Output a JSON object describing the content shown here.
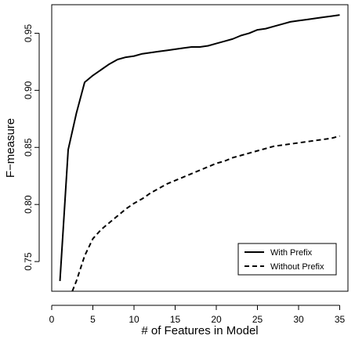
{
  "chart_data": {
    "type": "line",
    "title": "",
    "xlabel": "# of Features in Model",
    "ylabel": "F−measure",
    "xlim": [
      0,
      36
    ],
    "ylim": [
      0.724,
      0.975
    ],
    "xticks": [
      0,
      5,
      10,
      15,
      20,
      25,
      30,
      35
    ],
    "xtick_labels": [
      "0",
      "5",
      "10",
      "15",
      "20",
      "25",
      "30",
      "35"
    ],
    "yticks": [
      0.75,
      0.8,
      0.85,
      0.9,
      0.95
    ],
    "ytick_labels": [
      "0.75",
      "0.80",
      "0.85",
      "0.90",
      "0.95"
    ],
    "grid": false,
    "legend_position": "bottom-right",
    "series": [
      {
        "name": "With Prefix",
        "line_style": "solid",
        "color": "#000000",
        "x": [
          1,
          2,
          3,
          4,
          5,
          6,
          7,
          8,
          9,
          10,
          11,
          12,
          13,
          14,
          15,
          16,
          17,
          18,
          19,
          20,
          21,
          22,
          23,
          24,
          25,
          26,
          27,
          28,
          29,
          30,
          31,
          32,
          33,
          34,
          35
        ],
        "y": [
          0.733,
          0.848,
          0.88,
          0.907,
          0.913,
          0.918,
          0.923,
          0.927,
          0.929,
          0.93,
          0.932,
          0.933,
          0.934,
          0.935,
          0.936,
          0.937,
          0.938,
          0.938,
          0.939,
          0.941,
          0.943,
          0.945,
          0.948,
          0.95,
          0.953,
          0.954,
          0.956,
          0.958,
          0.96,
          0.961,
          0.962,
          0.963,
          0.964,
          0.965,
          0.966
        ]
      },
      {
        "name": "Without Prefix",
        "line_style": "dashed",
        "color": "#000000",
        "x": [
          2.5,
          3,
          4,
          5,
          6,
          7,
          8,
          9,
          10,
          11,
          12,
          13,
          14,
          15,
          16,
          17,
          18,
          19,
          20,
          21,
          22,
          23,
          24,
          25,
          26,
          27,
          28,
          29,
          30,
          31,
          32,
          33,
          34,
          35
        ],
        "y": [
          0.724,
          0.733,
          0.755,
          0.77,
          0.778,
          0.784,
          0.79,
          0.796,
          0.801,
          0.805,
          0.81,
          0.814,
          0.818,
          0.821,
          0.824,
          0.827,
          0.83,
          0.833,
          0.836,
          0.838,
          0.841,
          0.843,
          0.845,
          0.847,
          0.849,
          0.851,
          0.852,
          0.853,
          0.854,
          0.855,
          0.856,
          0.857,
          0.858,
          0.86
        ]
      }
    ]
  }
}
